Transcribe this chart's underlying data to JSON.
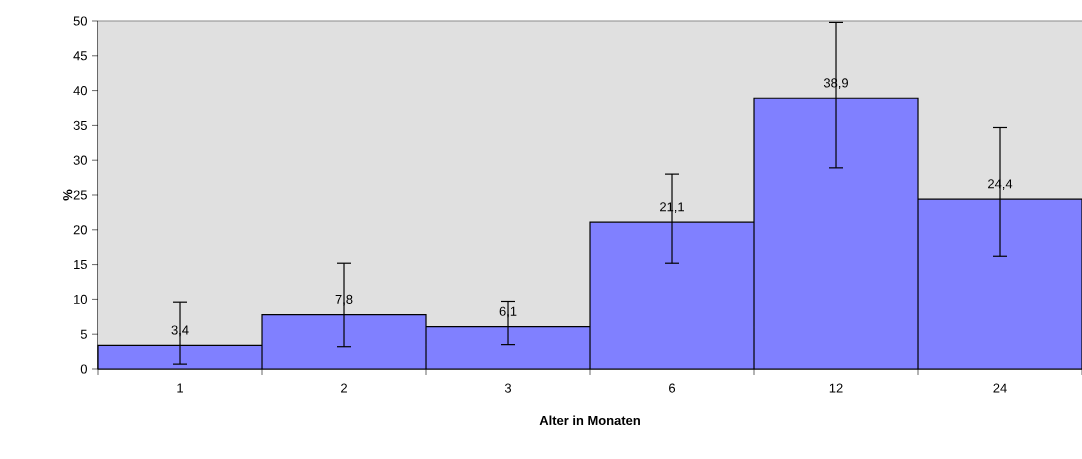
{
  "chart_data": {
    "type": "bar",
    "xlabel": "Alter in Monaten",
    "ylabel": "%",
    "categories": [
      "1",
      "2",
      "3",
      "6",
      "12",
      "24"
    ],
    "values": [
      3.4,
      7.8,
      6.1,
      21.1,
      38.9,
      24.4
    ],
    "value_labels": [
      "3,4",
      "7,8",
      "6,1",
      "21,1",
      "38,9",
      "24,4"
    ],
    "errors": [
      [
        0.7,
        9.6
      ],
      [
        3.2,
        15.2
      ],
      [
        3.5,
        9.7
      ],
      [
        15.2,
        28.0
      ],
      [
        28.9,
        49.8
      ],
      [
        16.2,
        34.7
      ]
    ],
    "color": "#8080ff",
    "ylim": [
      0,
      50
    ],
    "yticks": [
      0,
      5,
      10,
      15,
      20,
      25,
      30,
      35,
      40,
      45,
      50
    ]
  }
}
